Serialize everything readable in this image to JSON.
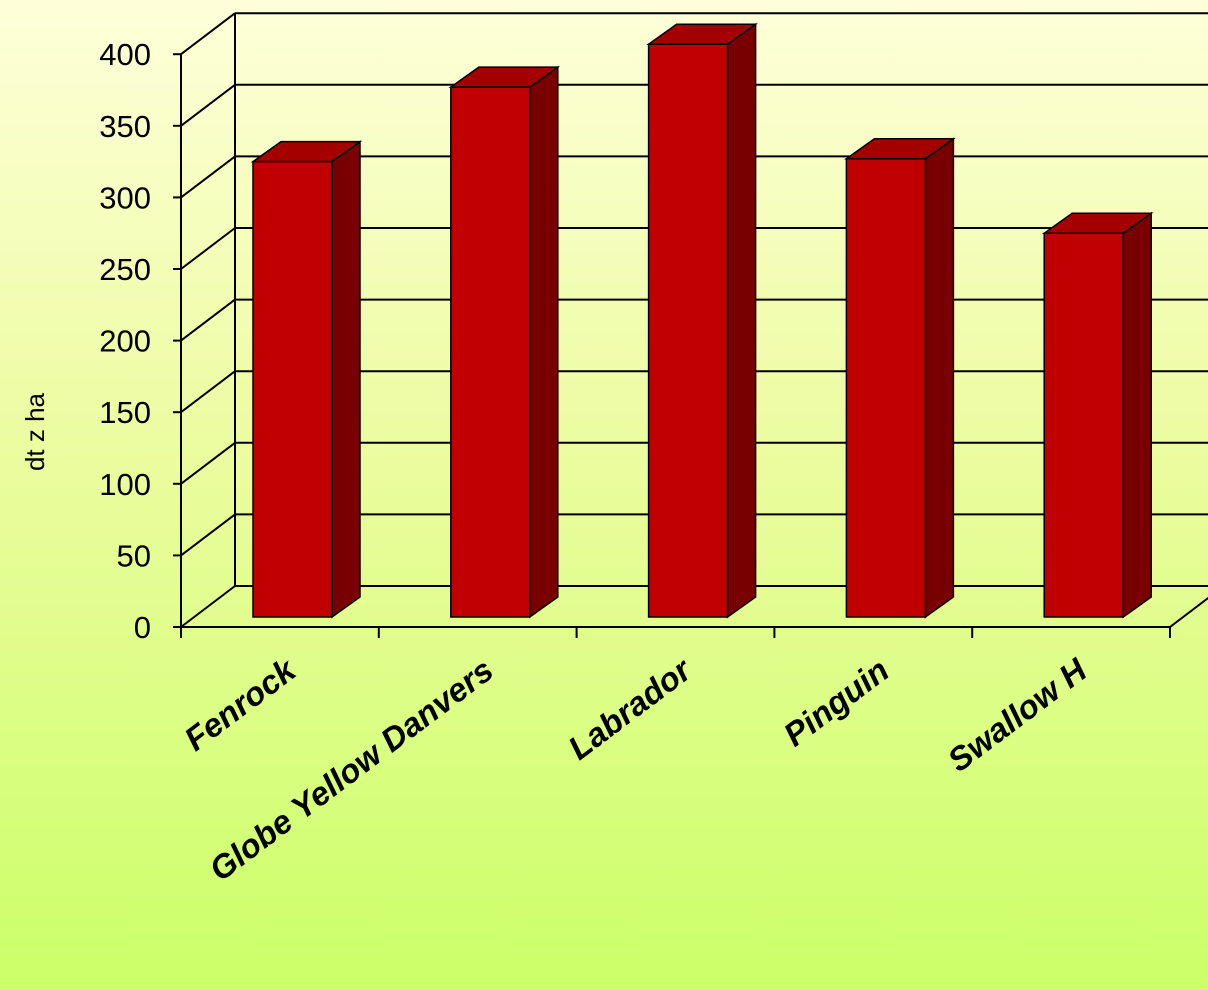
{
  "colors": {
    "bar_front": "#c00000",
    "bar_top": "#a40000",
    "bar_side": "#780000",
    "grid": "#000000"
  },
  "chart_data": {
    "type": "bar",
    "categories": [
      "Fenrock",
      "Globe Yellow Danvers",
      "Labrador",
      "Pinguin",
      "Swallow  H"
    ],
    "values": [
      318,
      370,
      400,
      320,
      268
    ],
    "title": "",
    "xlabel": "",
    "ylabel": "dt z ha",
    "ylim": [
      0,
      400
    ],
    "yticks": [
      0,
      50,
      100,
      150,
      200,
      250,
      300,
      350,
      400
    ],
    "ytick_labels": [
      "0",
      "50",
      "100",
      "150",
      "200",
      "250",
      "300",
      "350",
      "400"
    ],
    "grid": true,
    "legend": "none",
    "style": "3d-column"
  }
}
